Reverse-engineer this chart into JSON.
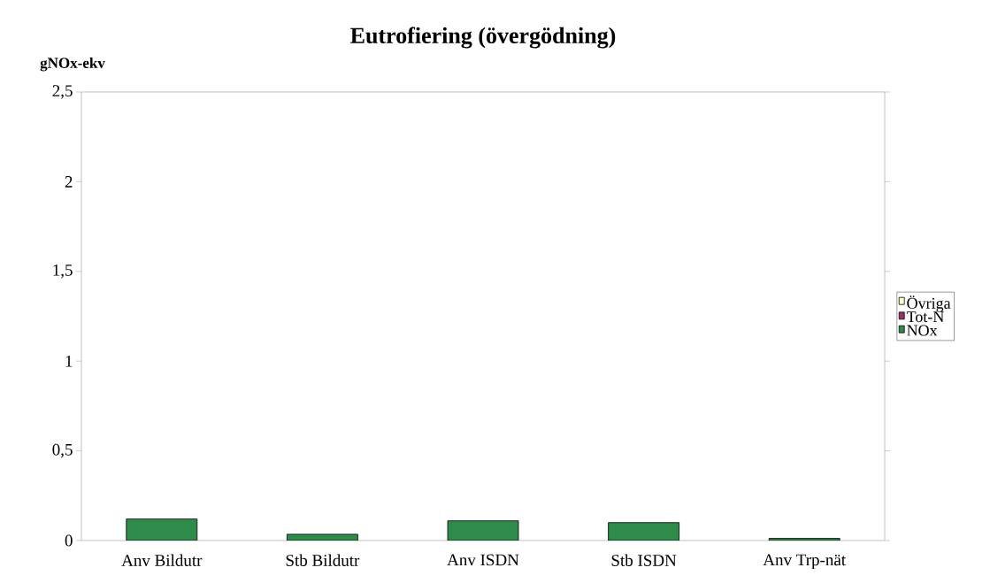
{
  "chart_data": {
    "type": "bar",
    "title": "Eutrofiering (övergödning)",
    "ylabel": "gNOx-ekv",
    "categories": [
      "Anv Bildutr",
      "Stb Bildutr",
      "Anv ISDN",
      "Stb ISDN",
      "Anv Trp-nät"
    ],
    "stacked": true,
    "series": [
      {
        "name": "NOx",
        "color": "#2e8b4a",
        "values": [
          0.12,
          0.035,
          0.11,
          0.1,
          0.012
        ]
      },
      {
        "name": "Tot-N",
        "color": "#993366",
        "values": [
          0,
          0,
          0,
          0,
          0
        ]
      },
      {
        "name": "Övriga",
        "color": "#ffffcc",
        "values": [
          0,
          0,
          0,
          0,
          0
        ]
      }
    ],
    "ylim": [
      0,
      2.5
    ],
    "yticks": [
      0,
      {
        "value": 0.5,
        "label": "0,5"
      },
      1,
      {
        "value": 1.5,
        "label": "1,5"
      },
      2,
      {
        "value": 2.5,
        "label": "2,5"
      }
    ],
    "grid": false,
    "legend": "right"
  }
}
